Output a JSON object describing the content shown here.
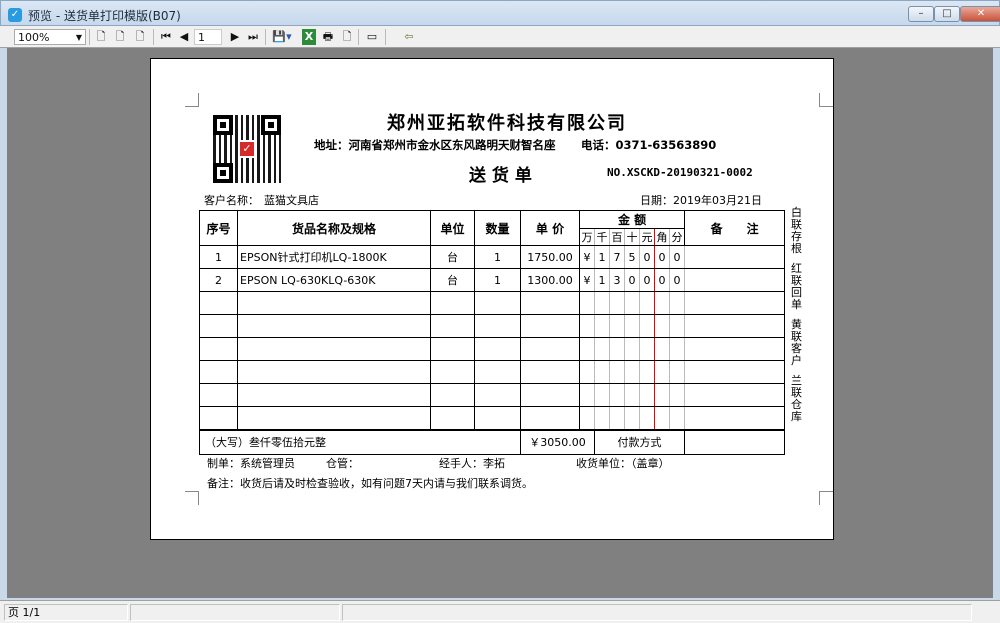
{
  "window": {
    "title": "预览 - 送货单打印模版(B07)"
  },
  "toolbar": {
    "zoom": "100%",
    "page": "1"
  },
  "doc": {
    "company": "郑州亚拓软件科技有限公司",
    "address": "地址：河南省郑州市金水区东风路明天财智名座",
    "phone": "电话：0371-63563890",
    "doc_title": "送 货 单",
    "number": "NO.XSCKD-20190321-0002",
    "customer_label": "客户名称：",
    "customer": "蓝猫文具店",
    "date": "日期：2019年03月21日",
    "headers": {
      "no": "序号",
      "name": "货品名称及规格",
      "unit": "单位",
      "qty": "数量",
      "price": "单 价",
      "amount": "金 额",
      "remark": "备　　注",
      "digits": [
        "万",
        "千",
        "百",
        "十",
        "元",
        "角",
        "分"
      ]
    },
    "rows": [
      {
        "no": "1",
        "name": "EPSON针式打印机LQ-1800K",
        "unit": "台",
        "qty": "1",
        "price": "1750.00",
        "digits": [
          "¥",
          "1",
          "7",
          "5",
          "0",
          "0",
          "0"
        ],
        "remark": ""
      },
      {
        "no": "2",
        "name": "EPSON LQ-630KLQ-630K",
        "unit": "台",
        "qty": "1",
        "price": "1300.00",
        "digits": [
          "¥",
          "1",
          "3",
          "0",
          "0",
          "0",
          "0"
        ],
        "remark": ""
      }
    ],
    "total_words": "（大写）叁仟零伍拾元整",
    "total_amount": "￥3050.00",
    "payment_label": "付款方式",
    "payment": "",
    "maker": "制单：系统管理员",
    "warehouse": "仓管：",
    "handler": "经手人：李拓",
    "receiver": "收货单位：（盖章）",
    "note": "备注：收货后请及时检查验收，如有问题7天内请与我们联系调货。",
    "copies": [
      "白联存根",
      "红联回单",
      "黄联客户",
      "兰联仓库"
    ]
  },
  "status": {
    "page": "页 1/1"
  }
}
